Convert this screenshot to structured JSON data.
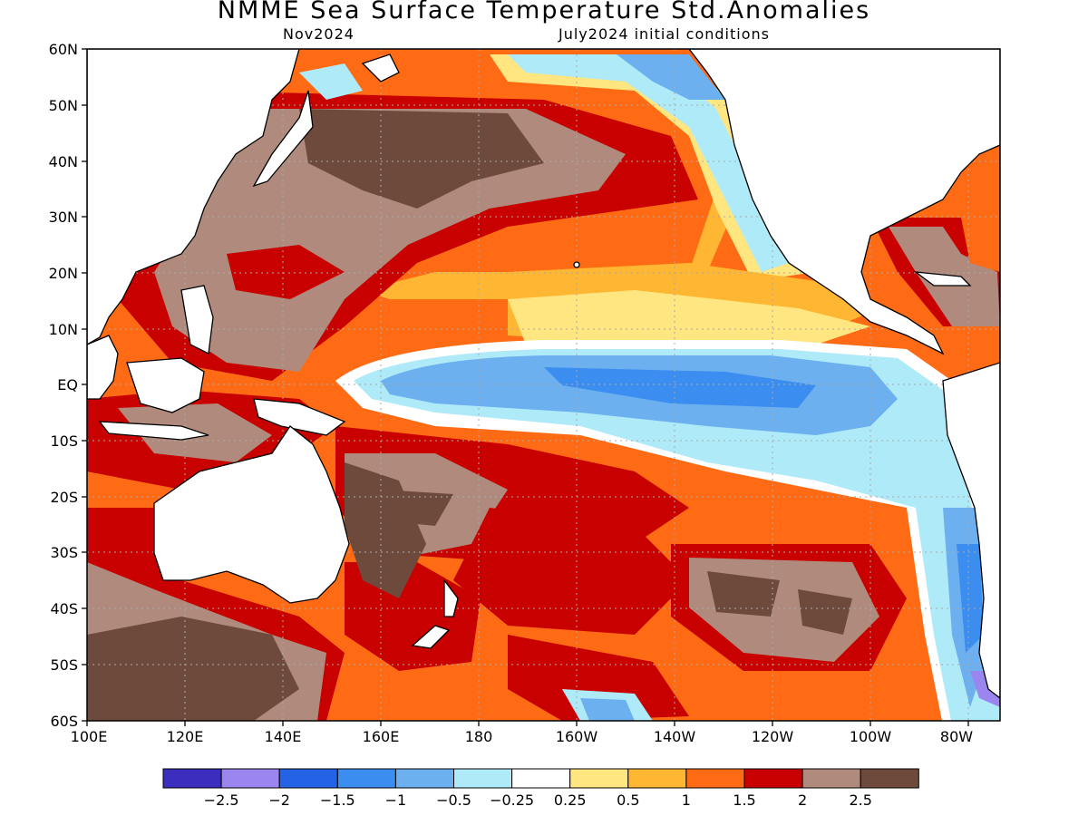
{
  "title": "NMME Sea Surface Temperature Std.Anomalies",
  "subtitle_left": "Nov2024",
  "subtitle_right": "July2024 initial conditions",
  "map": {
    "lat_labels": [
      "60N",
      "50N",
      "40N",
      "30N",
      "20N",
      "10N",
      "EQ",
      "10S",
      "20S",
      "30S",
      "40S",
      "50S",
      "60S"
    ],
    "lon_labels": [
      "100E",
      "120E",
      "140E",
      "160E",
      "180",
      "160W",
      "140W",
      "120W",
      "100W",
      "80W"
    ]
  },
  "colorbar": {
    "colors": [
      "#3b2dbd",
      "#9b86f0",
      "#2563e6",
      "#3c8df0",
      "#6cb0f0",
      "#aeeaf7",
      "#ffffff",
      "#ffe680",
      "#ffb733",
      "#ff6a14",
      "#c80000",
      "#b08a7c",
      "#6e4a3c"
    ],
    "labels": [
      "−2.5",
      "−2",
      "−1.5",
      "−1",
      "−0.5",
      "−0.25",
      "0.25",
      "0.5",
      "1",
      "1.5",
      "2",
      "2.5"
    ]
  }
}
